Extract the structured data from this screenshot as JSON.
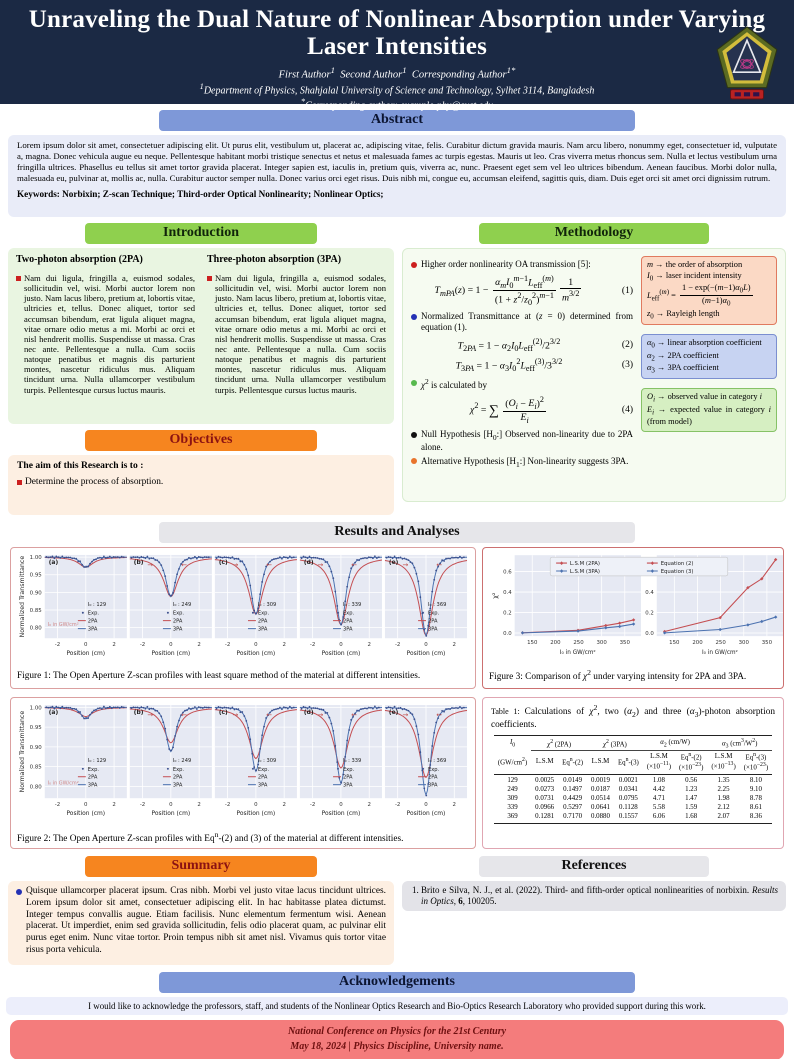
{
  "colors": {
    "header_bg": "#1b2944",
    "accent_blue": "#7e98d8",
    "accent_green": "#8fd04e",
    "accent_orange": "#f6851f",
    "footer_bg": "#f47c7c",
    "plot_bg": "#e6e9f3",
    "line_2pa": "#c44e52",
    "line_3pa": "#4c72b0",
    "exp_dot": "#3b4f8c",
    "arrow_red": "#c0504d"
  },
  "header": {
    "title_line1": "Unraveling the Dual Nature of Nonlinear Absorption under Varying",
    "title_line2": "Laser Intensities",
    "authors_html": "First Author<sup>1</sup> &nbsp;Second Author<sup>1</sup> &nbsp;Corresponding Author<sup>1*</sup>",
    "affiliation_html": "<sup>1</sup>Department of Physics, Shahjalal University of Science and Technology, Sylhet 3114, Bangladesh",
    "contact_html": "<sup>*</sup>Corresponding author: example-phy@sust.edu",
    "logo_name": "university-emblem"
  },
  "abstract": {
    "heading": "Abstract",
    "text": "Lorem ipsum dolor sit amet, consectetuer adipiscing elit. Ut purus elit, vestibulum ut, placerat ac, adipiscing vitae, felis. Curabitur dictum gravida mauris. Nam arcu libero, nonummy eget, consectetuer id, vulputate a, magna. Donec vehicula augue eu neque. Pellentesque habitant morbi tristique senectus et netus et malesuada fames ac turpis egestas. Mauris ut leo. Cras viverra metus rhoncus sem. Nulla et lectus vestibulum urna fringilla ultrices. Phasellus eu tellus sit amet tortor gravida placerat. Integer sapien est, iaculis in, pretium quis, viverra ac, nunc. Praesent eget sem vel leo ultrices bibendum. Aenean faucibus. Morbi dolor nulla, malesuada eu, pulvinar at, mollis ac, nulla. Curabitur auctor semper nulla. Donec varius orci eget risus. Duis nibh mi, congue eu, accumsan eleifend, sagittis quis, diam. Duis eget orci sit amet orci dignissim rutrum.",
    "keywords": "Keywords: Norbixin; Z-scan Technique; Third-order Optical Nonlinearity; Nonlinear Optics;"
  },
  "introduction": {
    "heading": "Introduction",
    "col1_title": "Two-photon absorption (2PA)",
    "col1_text": "Nam dui ligula, fringilla a, euismod sodales, sollicitudin vel, wisi. Morbi auctor lorem non justo. Nam lacus libero, pretium at, lobortis vitae, ultricies et, tellus. Donec aliquet, tortor sed accumsan bibendum, erat ligula aliquet magna, vitae ornare odio metus a mi. Morbi ac orci et nisl hendrerit mollis. Suspendisse ut massa. Cras nec ante. Pellentesque a nulla. Cum sociis natoque penatibus et magnis dis parturient montes, nascetur ridiculus mus. Aliquam tincidunt urna. Nulla ullamcorper vestibulum turpis. Pellentesque cursus luctus mauris.",
    "col2_title": "Three-photon absorption (3PA)",
    "col2_text": "Nam dui ligula, fringilla a, euismod sodales, sollicitudin vel, wisi. Morbi auctor lorem non justo. Nam lacus libero, pretium at, lobortis vitae, ultricies et, tellus. Donec aliquet, tortor sed accumsan bibendum, erat ligula aliquet magna, vitae ornare odio metus a mi. Morbi ac orci et nisl hendrerit mollis. Suspendisse ut massa. Cras nec ante. Pellentesque a nulla. Cum sociis natoque penatibus et magnis dis parturient montes, nascetur ridiculus mus. Aliquam tincidunt urna. Nulla ullamcorper vestibulum turpis. Pellentesque cursus luctus mauris."
  },
  "objectives": {
    "heading": "Objectives",
    "lead": "The aim of this Research is to :",
    "item": "Determine the process of absorption."
  },
  "methodology": {
    "heading": "Methodology",
    "items": [
      {
        "kind": "bullet",
        "color": "#cc1f1f",
        "html": "Higher order nonlinearity OA transmission [5]:"
      },
      {
        "kind": "equation",
        "num": "(1)",
        "html": "<i>T<sub>mPA</sub></i>(<i>z</i>) = 1 − <span class='frac'><span class='num'><i>α<sub>m</sub>I</i><sub>0</sub><sup><i>m</i>−1</sup><i>L</i><sub>eff</sub><sup>(<i>m</i>)</sup></span><span class='den'>(1 + <i>z</i><sup>2</sup>/<i>z</i><sub>0</sub><sup>2</sup>)<sup><i>m</i>−1</sup></span></span><span class='frac'><span class='num'>1</span><span class='den'><i>m</i><sup>3/2</sup></span></span>"
      },
      {
        "kind": "bullet",
        "color": "#2431b4",
        "html": "Normalized Transmittance at (<i>z</i> = 0) determined from equation (1)."
      },
      {
        "kind": "equation",
        "num": "(2)",
        "html": "<i>T</i><sub>2<i>PA</i></sub> = 1 − <i>α</i><sub>2</sub><i>I</i><sub>0</sub><i>L</i><sub>eff</sub><sup>(2)</sup>/2<sup>3/2</sup>"
      },
      {
        "kind": "equation",
        "num": "(3)",
        "html": "<i>T</i><sub>3<i>PA</i></sub> = 1 − <i>α</i><sub>3</sub><i>I</i><sub>0</sub><sup>2</sup><i>L</i><sub>eff</sub><sup>(3)</sup>/3<sup>3/2</sup>"
      },
      {
        "kind": "bullet",
        "color": "#57b94e",
        "html": "<i>χ</i><sup>2</sup> is calculated by"
      },
      {
        "kind": "equation",
        "num": "(4)",
        "html": "<i>χ</i><sup>2</sup> = <span class='sum'>∑</span> <span class='frac'><span class='num'>(<i>O<sub>i</sub></i> − <i>E<sub>i</sub></i>)<sup>2</sup></span><span class='den'><i>E<sub>i</sub></i></span></span>"
      },
      {
        "kind": "bullet",
        "color": "#111111",
        "html": "Null Hypothesis [H<sub>0</sub>:] Observed non-linearity due to 2PA alone."
      },
      {
        "kind": "bullet",
        "color": "#e8742c",
        "html": "Alternative Hypothesis [H<sub>1</sub>:] Non-linearity suggests 3PA."
      }
    ],
    "side_notes": [
      {
        "bg": "#fbd9c5",
        "border": "#e07a5f",
        "html": "<i>m</i> → the order of absorption<br><i>I</i><sub>0</sub> → laser incident intensity<br><i>L</i><sub>eff</sub><sup>(<i>m</i>)</sup> = <span class='frac'><span class='num'>1 − exp(−(<i>m</i>−1)<i>α</i><sub>0</sub><i>L</i>)</span><span class='den'>(<i>m</i>−1)<i>α</i><sub>0</sub></span></span><br><i>z</i><sub>0</sub> → Rayleigh length"
      },
      {
        "bg": "#c7d3f2",
        "border": "#7b8fd0",
        "html": "<i>α</i><sub>0</sub> → linear absorption coefficient<br><i>α</i><sub>2</sub> → 2PA coefficient<br><i>α</i><sub>3</sub> → 3PA coefficient"
      },
      {
        "bg": "#d6efc2",
        "border": "#86c266",
        "html": "<i>O<sub>i</sub></i> → observed value in category <i>i</i><br><i>E<sub>i</sub></i> → expected value in category <i>i</i> (from model)"
      }
    ]
  },
  "results": {
    "heading": "Results and Analyses",
    "fig1_caption": "Figure 1: The Open Aperture Z-scan profiles with least square method of the material at different intensities.",
    "fig2_caption_html": "Figure 2: The Open Aperture Z-scan profiles with Eq<sup>n</sup>-(2) and (3) of the material at different intensities.",
    "fig3_caption_html": "Figure 3: Comparison of <i>χ</i><sup>2</sup> under varying intensity for 2PA and 3PA.",
    "table": {
      "caption_html": "<span style='font-size:8px'>Table 1: </span>Calculations of <i>χ</i><sup>2</sup>, two (<i>α</i><sub>2</sub>) and three (<i>α</i><sub>3</sub>)-photon absorption coefficients.",
      "group_headers": [
        {
          "html": "<i>I</i><sub>0</sub>",
          "span": 1,
          "rule": false
        },
        {
          "html": "<i>χ</i><sup>2</sup> (2PA)",
          "span": 2,
          "rule": true
        },
        {
          "html": "<i>χ</i><sup>2</sup> (3PA)",
          "span": 2,
          "rule": true
        },
        {
          "html": "<i>α</i><sub>2</sub> (cm/W)",
          "span": 2,
          "rule": true
        },
        {
          "html": "<i>α</i><sub>3</sub> (cm<sup>3</sup>/W<sup>2</sup>)",
          "span": 2,
          "rule": true
        }
      ],
      "sub_headers_html": [
        "(GW/cm<sup>2</sup>)",
        "L.S.M",
        "Eq<sup>n</sup>-(2)",
        "L.S.M",
        "Eq<sup>n</sup>-(3)",
        "L.S.M<br>(×10<sup>−11</sup>)",
        "Eq<sup>n</sup>-(2)<br>(×10<sup>−23</sup>)",
        "L.S.M<br>(×10<sup>−13</sup>)",
        "Eq<sup>n</sup>-(3)<br>(×10<sup>−23</sup>)"
      ],
      "rows": [
        [
          "129",
          "0.0025",
          "0.0149",
          "0.0019",
          "0.0021",
          "1.08",
          "0.56",
          "1.35",
          "8.10"
        ],
        [
          "249",
          "0.0273",
          "0.1497",
          "0.0187",
          "0.0341",
          "4.42",
          "1.23",
          "2.25",
          "9.10"
        ],
        [
          "309",
          "0.0731",
          "0.4429",
          "0.0514",
          "0.0795",
          "4.71",
          "1.47",
          "1.98",
          "8.78"
        ],
        [
          "339",
          "0.0966",
          "0.5297",
          "0.0641",
          "0.1128",
          "5.58",
          "1.59",
          "2.12",
          "8.61"
        ],
        [
          "369",
          "0.1281",
          "0.7170",
          "0.0880",
          "0.1557",
          "6.06",
          "1.68",
          "2.07",
          "8.36"
        ]
      ]
    }
  },
  "chart_data": [
    {
      "id": "fig1",
      "type": "line",
      "title": "Open Aperture Z-scan profiles (least square method)",
      "xlabel": "Position (cm)",
      "ylabel": "Normalized Transmittance",
      "xlim": [
        -2.9,
        2.9
      ],
      "ylim": [
        0.77,
        1.006
      ],
      "xticks": [
        -2,
        0,
        2
      ],
      "yticks": [
        1.0,
        0.95,
        0.9,
        0.85,
        0.8
      ],
      "grid": true,
      "legend": [
        "Exp.",
        "2PA",
        "3PA"
      ],
      "note": "I₀ in GW/cm²",
      "red_depth_factor": 1.0,
      "panels": [
        {
          "label": "(a)",
          "I0": 129,
          "min_T": 0.971,
          "arrows": false
        },
        {
          "label": "(b)",
          "I0": 249,
          "min_T": 0.888,
          "arrows": true
        },
        {
          "label": "(c)",
          "I0": 309,
          "min_T": 0.838,
          "arrows": true
        },
        {
          "label": "(d)",
          "I0": 339,
          "min_T": 0.808,
          "arrows": true
        },
        {
          "label": "(e)",
          "I0": 369,
          "min_T": 0.778,
          "arrows": true
        }
      ]
    },
    {
      "id": "fig2",
      "type": "line",
      "title": "Open Aperture Z-scan profiles (Eqn-(2) and (3))",
      "xlabel": "Position (cm)",
      "ylabel": "Normalized Transmittance",
      "xlim": [
        -2.9,
        2.9
      ],
      "ylim": [
        0.77,
        1.006
      ],
      "xticks": [
        -2,
        0,
        2
      ],
      "yticks": [
        1.0,
        0.95,
        0.9,
        0.85,
        0.8
      ],
      "grid": true,
      "legend": [
        "Exp.",
        "2PA",
        "3PA"
      ],
      "note": "I₀ in GW/cm²",
      "red_depth_factor": 0.8,
      "panels": [
        {
          "label": "(a)",
          "I0": 129,
          "min_T": 0.971,
          "arrows": false
        },
        {
          "label": "(b)",
          "I0": 249,
          "min_T": 0.888,
          "arrows": true
        },
        {
          "label": "(c)",
          "I0": 309,
          "min_T": 0.838,
          "arrows": true
        },
        {
          "label": "(d)",
          "I0": 339,
          "min_T": 0.808,
          "arrows": true
        },
        {
          "label": "(e)",
          "I0": 369,
          "min_T": 0.778,
          "arrows": true
        }
      ]
    },
    {
      "id": "fig3",
      "type": "line",
      "title": "Comparison of chi-squared under varying intensity",
      "xlabel": "I₀ in GW/cm²",
      "ylabel": "χ²",
      "x": [
        129,
        249,
        309,
        339,
        369
      ],
      "xticks": [
        150,
        200,
        250,
        300,
        350
      ],
      "yticks": [
        0.0,
        0.2,
        0.4,
        0.6
      ],
      "xlim": [
        112,
        385
      ],
      "ylim": [
        -0.03,
        0.76
      ],
      "grid": true,
      "legend_position": "upper center",
      "panels": [
        {
          "series": [
            {
              "name": "L.S.M (2PA)",
              "color": "#c44e52",
              "values": [
                0.0025,
                0.0273,
                0.0731,
                0.0966,
                0.1281
              ]
            },
            {
              "name": "L.S.M (3PA)",
              "color": "#4c72b0",
              "values": [
                0.0019,
                0.0187,
                0.0514,
                0.0641,
                0.088
              ]
            }
          ]
        },
        {
          "series": [
            {
              "name": "Equation (2)",
              "color": "#c44e52",
              "values": [
                0.0149,
                0.1497,
                0.4429,
                0.5297,
                0.717
              ]
            },
            {
              "name": "Equation (3)",
              "color": "#4c72b0",
              "values": [
                0.0021,
                0.0341,
                0.0795,
                0.1128,
                0.1557
              ]
            }
          ]
        }
      ]
    }
  ],
  "summary": {
    "heading": "Summary",
    "text": "Quisque ullamcorper placerat ipsum. Cras nibh. Morbi vel justo vitae lacus tincidunt ultrices. Lorem ipsum dolor sit amet, consectetuer adipiscing elit. In hac habitasse platea dictumst. Integer tempus convallis augue. Etiam facilisis. Nunc elementum fermentum wisi. Aenean placerat. Ut imperdiet, enim sed gravida sollicitudin, felis odio placerat quam, ac pulvinar elit purus eget enim. Nunc vitae tortor. Proin tempus nibh sit amet nisl. Vivamus quis tortor vitae risus porta vehicula."
  },
  "references": {
    "heading": "References",
    "items_html": [
      "Brito e Silva, N. J., et al. (2022). Third- and fifth-order optical nonlinearities of norbixin. <i>Results in Optics</i>, <b>6</b>, 100205."
    ]
  },
  "acknowledgements": {
    "heading": "Acknowledgements",
    "text": "I would like to acknowledge the professors, staff, and students of the Nonlinear Optics Research and Bio-Optics Research Laboratory who provided support during this work."
  },
  "footer": {
    "line1": "National Conference on Physics for the 21st Century",
    "line2": "May 18, 2024  | Physics Discipline, University name."
  }
}
